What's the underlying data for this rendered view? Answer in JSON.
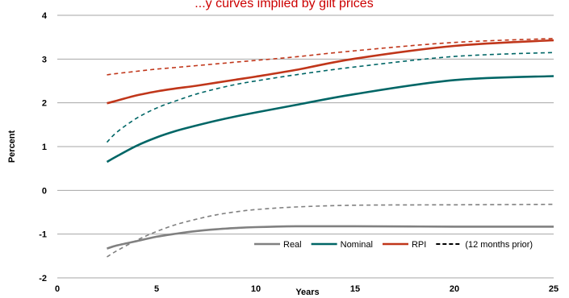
{
  "chart_data": {
    "type": "line",
    "title": "...y curves implied by gilt prices",
    "xlabel": "Years",
    "ylabel": "Percent",
    "xlim": [
      0,
      25
    ],
    "ylim": [
      -2,
      4
    ],
    "x_ticks": [
      "0",
      "5",
      "10",
      "15",
      "20",
      "25"
    ],
    "y_ticks": [
      "-2",
      "-1",
      "0",
      "1",
      "2",
      "3",
      "4"
    ],
    "grid": "horizontal",
    "legend_position": "bottom-right",
    "legend_extra": "(12 months prior)",
    "colors": {
      "title": "#cc0000",
      "real": "#808080",
      "nominal": "#006666",
      "rpi": "#c0361a",
      "grid": "#a6a6a6",
      "legend_dashed": "#000000"
    },
    "series": [
      {
        "name": "Real",
        "style": "solid",
        "color_key": "real",
        "x": [
          2.5,
          3,
          4,
          5,
          6,
          7,
          8,
          9,
          10,
          12,
          15,
          20,
          25
        ],
        "y": [
          -1.33,
          -1.26,
          -1.16,
          -1.06,
          -0.99,
          -0.93,
          -0.89,
          -0.86,
          -0.84,
          -0.82,
          -0.82,
          -0.83,
          -0.83
        ]
      },
      {
        "name": "Real (12 months prior)",
        "style": "dashed",
        "color_key": "real",
        "x": [
          2.5,
          3,
          4,
          5,
          6,
          7,
          8,
          9,
          10,
          12,
          15,
          20,
          25
        ],
        "y": [
          -1.52,
          -1.38,
          -1.14,
          -0.94,
          -0.78,
          -0.66,
          -0.56,
          -0.49,
          -0.44,
          -0.38,
          -0.34,
          -0.33,
          -0.32
        ]
      },
      {
        "name": "Nominal",
        "style": "solid",
        "color_key": "nominal",
        "x": [
          2.5,
          3,
          4,
          5,
          6,
          7,
          8,
          9,
          10,
          12,
          15,
          20,
          25
        ],
        "y": [
          0.65,
          0.78,
          1.02,
          1.21,
          1.36,
          1.48,
          1.59,
          1.69,
          1.78,
          1.95,
          2.2,
          2.52,
          2.61
        ]
      },
      {
        "name": "Nominal (12 months prior)",
        "style": "dashed",
        "color_key": "nominal",
        "x": [
          2.5,
          3,
          4,
          5,
          6,
          7,
          8,
          9,
          10,
          12,
          15,
          20,
          25
        ],
        "y": [
          1.1,
          1.33,
          1.65,
          1.88,
          2.05,
          2.2,
          2.32,
          2.42,
          2.5,
          2.64,
          2.82,
          3.06,
          3.15
        ]
      },
      {
        "name": "RPI",
        "style": "solid",
        "color_key": "rpi",
        "x": [
          2.5,
          3,
          4,
          5,
          6,
          7,
          8,
          9,
          10,
          12,
          15,
          20,
          25
        ],
        "y": [
          1.99,
          2.05,
          2.17,
          2.26,
          2.33,
          2.39,
          2.46,
          2.53,
          2.6,
          2.75,
          3.01,
          3.3,
          3.43
        ]
      },
      {
        "name": "RPI (12 months prior)",
        "style": "dashed",
        "color_key": "rpi",
        "x": [
          2.5,
          3,
          4,
          5,
          6,
          7,
          8,
          9,
          10,
          12,
          15,
          20,
          25
        ],
        "y": [
          2.64,
          2.67,
          2.72,
          2.77,
          2.81,
          2.85,
          2.89,
          2.93,
          2.97,
          3.05,
          3.19,
          3.38,
          3.47
        ]
      }
    ]
  }
}
